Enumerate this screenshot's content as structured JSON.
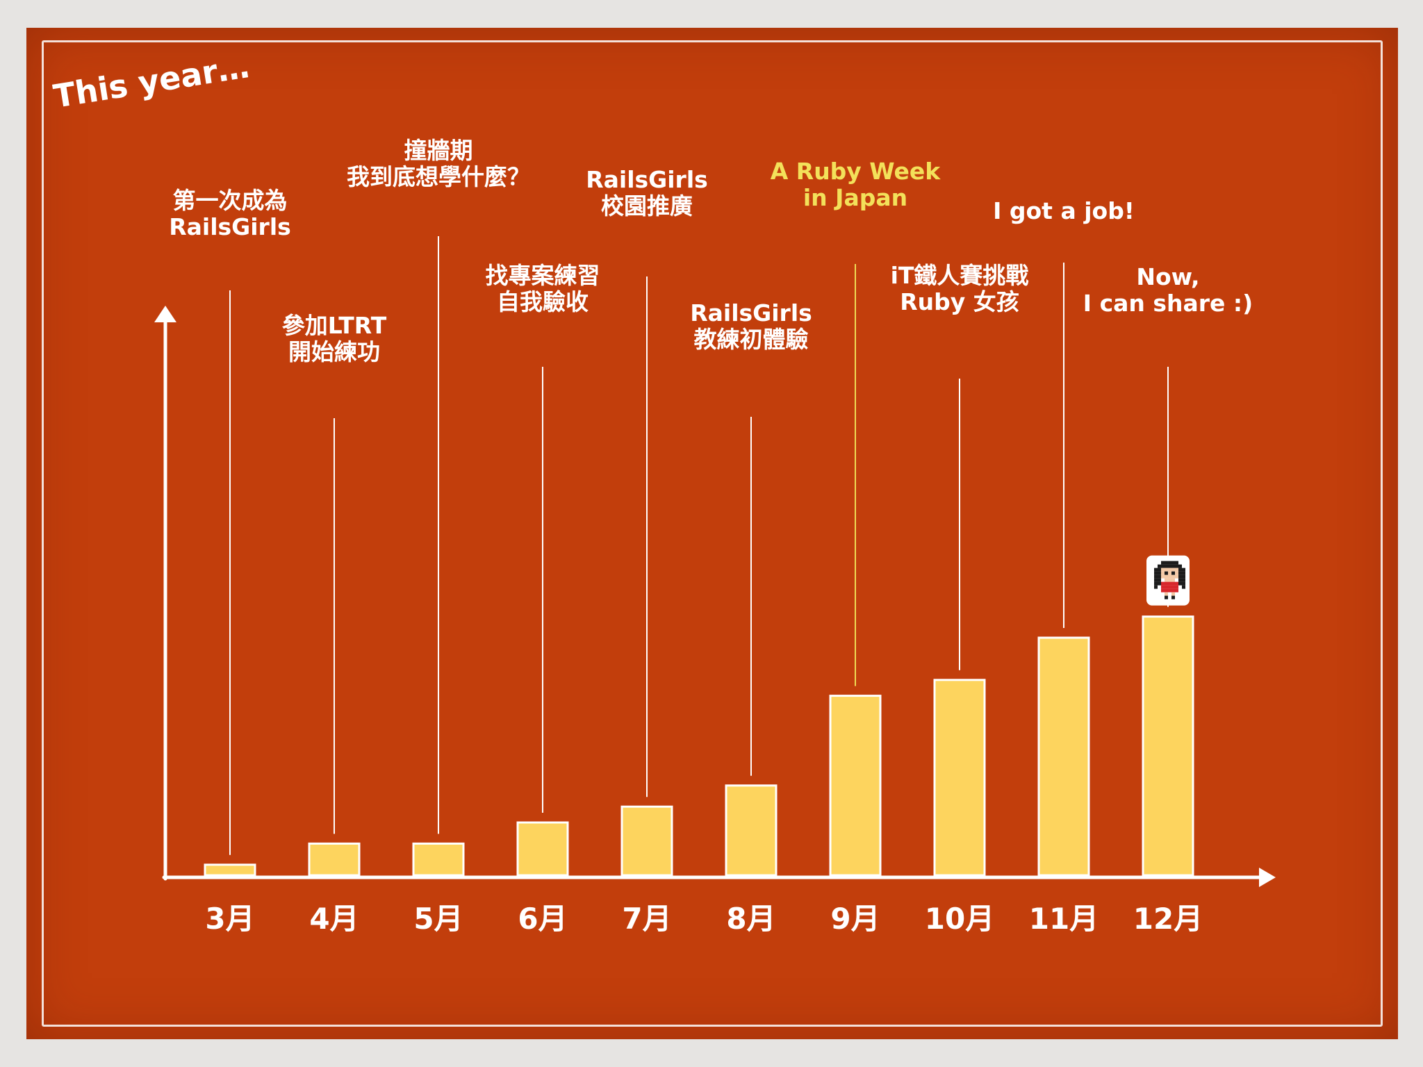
{
  "slide_title": "This year…",
  "chart_data": {
    "type": "bar",
    "categories": [
      "3月",
      "4月",
      "5月",
      "6月",
      "7月",
      "8月",
      "9月",
      "10月",
      "11月",
      "12月"
    ],
    "values": [
      1,
      3,
      3,
      5,
      6.5,
      8.5,
      17,
      18.5,
      22.5,
      24.5
    ],
    "ylim": [
      0,
      25
    ],
    "grid": false,
    "annotations": [
      {
        "category": "3月",
        "lines": [
          "第一次成為",
          "RailsGirls"
        ]
      },
      {
        "category": "4月",
        "lines": [
          "參加LTRT",
          "開始練功"
        ]
      },
      {
        "category": "5月",
        "lines": [
          "撞牆期",
          "我到底想學什麼？"
        ]
      },
      {
        "category": "6月",
        "lines": [
          "找專案練習",
          "自我驗收"
        ]
      },
      {
        "category": "7月",
        "lines": [
          "RailsGirls",
          "校園推廣"
        ]
      },
      {
        "category": "8月",
        "lines": [
          "RailsGirls",
          "教練初體驗"
        ]
      },
      {
        "category": "9月",
        "lines": [
          "A Ruby Week",
          "in Japan"
        ],
        "highlight": true
      },
      {
        "category": "10月",
        "lines": [
          "iT鐵人賽挑戰",
          "Ruby 女孩"
        ]
      },
      {
        "category": "11月",
        "lines": [
          "I got a job!"
        ]
      },
      {
        "category": "12月",
        "lines": [
          "Now,",
          "I can share :)"
        ]
      }
    ]
  },
  "avatar_icon": "pixel-girl-avatar-icon",
  "colors": {
    "background": "#c23e0c",
    "bar": "#fdd45e",
    "bar_stroke": "#ffffff",
    "axis": "#ffffff",
    "text": "#ffffff",
    "highlight_text": "#f3e15a",
    "highlight_line": "#eedc55"
  }
}
